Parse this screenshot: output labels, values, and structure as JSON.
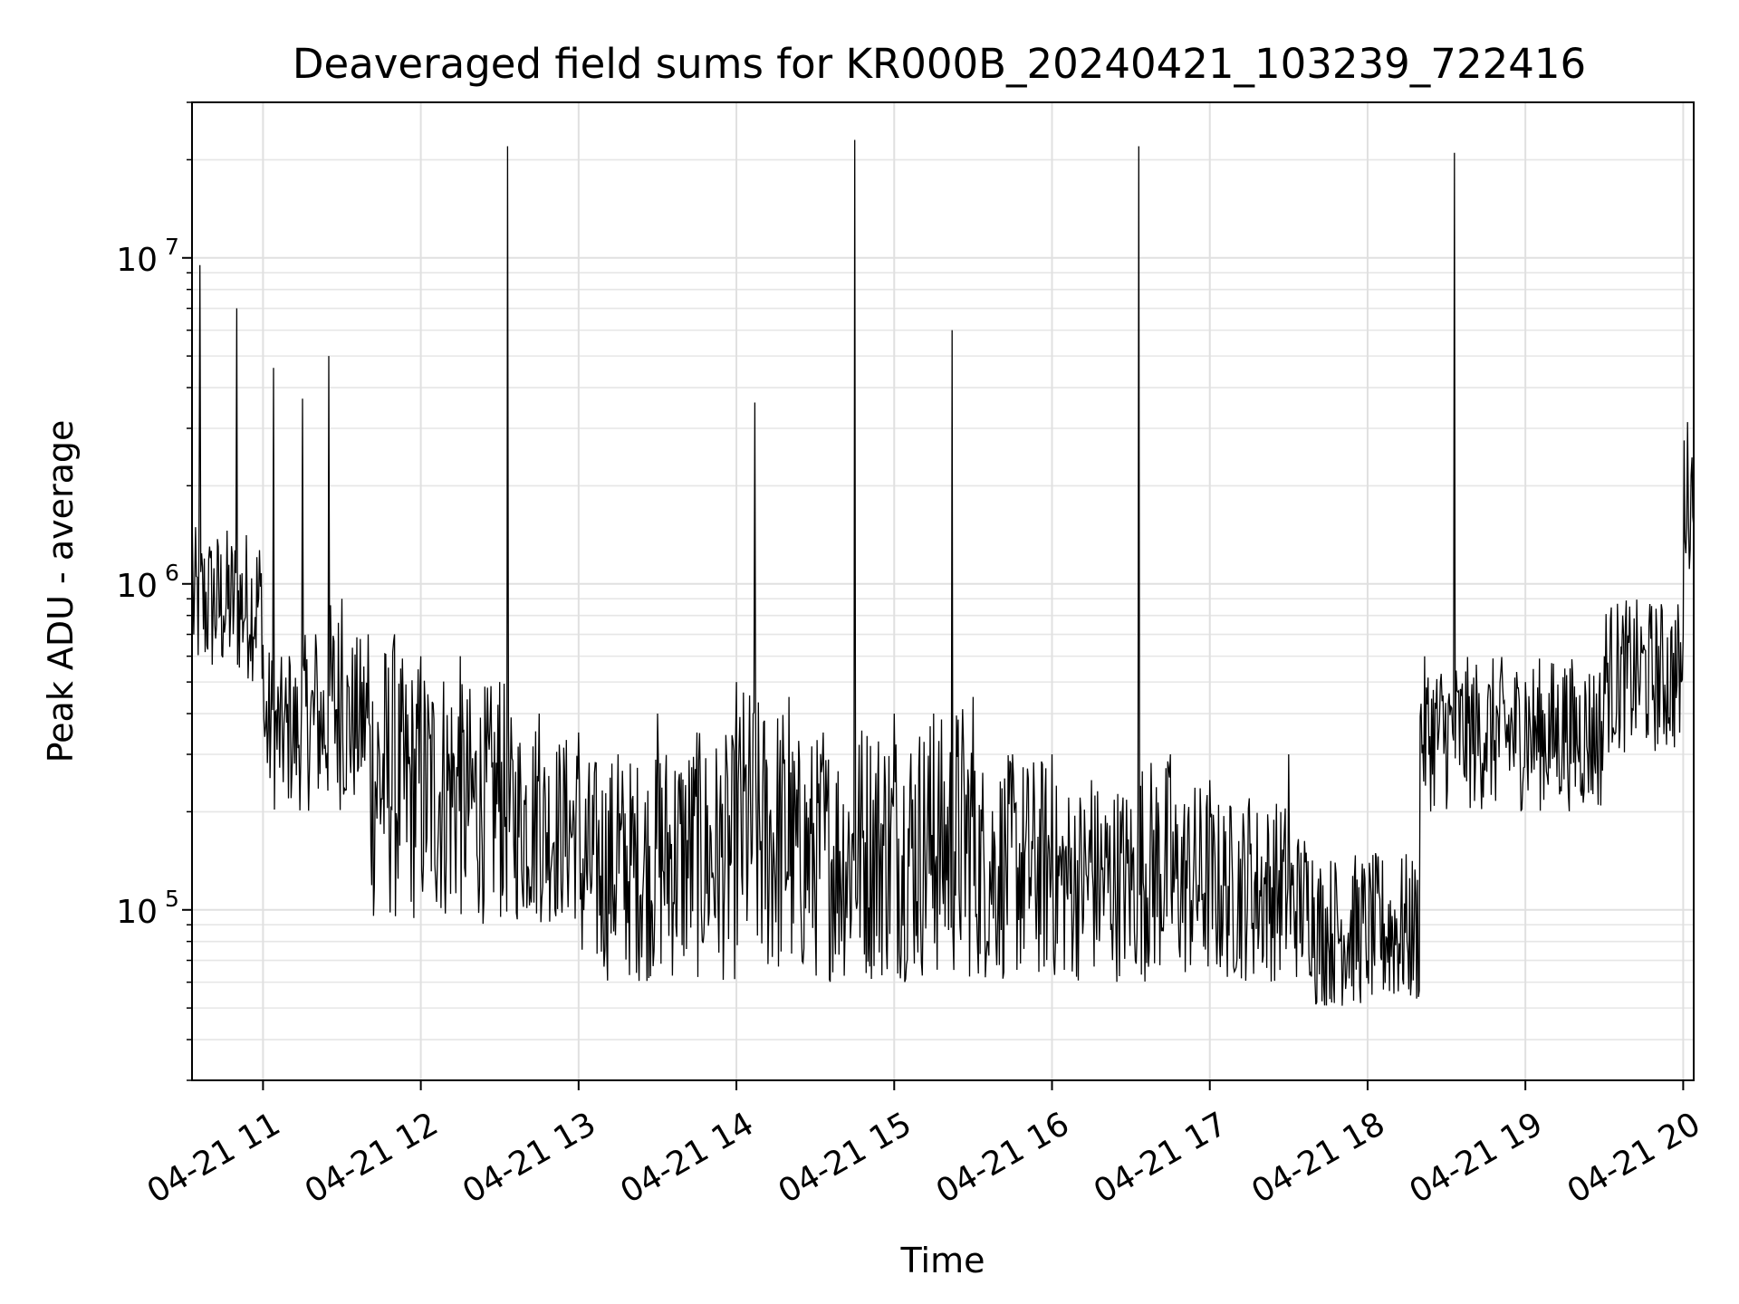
{
  "chart_data": {
    "type": "line",
    "title": "Deaveraged field sums for KR000B_20240421_103239_722416",
    "xlabel": "Time",
    "ylabel": "Peak ADU - average",
    "y_scale": "log",
    "ylim": [
      30000,
      30000000
    ],
    "xlim": [
      "2024-04-21 10:33",
      "2024-04-21 20:04"
    ],
    "grid": true,
    "line_color": "#000000",
    "x_ticks": [
      "04-21 11",
      "04-21 12",
      "04-21 13",
      "04-21 14",
      "04-21 15",
      "04-21 16",
      "04-21 17",
      "04-21 18",
      "04-21 19",
      "04-21 20"
    ],
    "y_ticks": [
      {
        "value": 100000,
        "base": "10",
        "exp": "5"
      },
      {
        "value": 1000000,
        "base": "10",
        "exp": "6"
      },
      {
        "value": 10000000,
        "base": "10",
        "exp": "7"
      }
    ],
    "series": [
      {
        "color": "#000000",
        "x": [
          "2024-04-21 10:33",
          "2024-04-21 10:36",
          "2024-04-21 10:40",
          "2024-04-21 10:45",
          "2024-04-21 10:50",
          "2024-04-21 10:55",
          "2024-04-21 11:00",
          "2024-04-21 11:04",
          "2024-04-21 11:10",
          "2024-04-21 11:15",
          "2024-04-21 11:20",
          "2024-04-21 11:25",
          "2024-04-21 11:30",
          "2024-04-21 11:40",
          "2024-04-21 11:50",
          "2024-04-21 12:00",
          "2024-04-21 12:15",
          "2024-04-21 12:30",
          "2024-04-21 12:33",
          "2024-04-21 12:45",
          "2024-04-21 13:00",
          "2024-04-21 13:15",
          "2024-04-21 13:30",
          "2024-04-21 13:45",
          "2024-04-21 14:00",
          "2024-04-21 14:07",
          "2024-04-21 14:20",
          "2024-04-21 14:33",
          "2024-04-21 14:45",
          "2024-04-21 15:00",
          "2024-04-21 15:15",
          "2024-04-21 15:22",
          "2024-04-21 15:30",
          "2024-04-21 15:45",
          "2024-04-21 16:00",
          "2024-04-21 16:15",
          "2024-04-21 16:33",
          "2024-04-21 16:45",
          "2024-04-21 17:00",
          "2024-04-21 17:15",
          "2024-04-21 17:30",
          "2024-04-21 17:45",
          "2024-04-21 18:00",
          "2024-04-21 18:15",
          "2024-04-21 18:33",
          "2024-04-21 18:45",
          "2024-04-21 19:00",
          "2024-04-21 19:15",
          "2024-04-21 19:30",
          "2024-04-21 19:45",
          "2024-04-21 20:00",
          "2024-04-21 20:04"
        ],
        "y": [
          1800000,
          9500000,
          1200000,
          800000,
          7000000,
          700000,
          650000,
          4600000,
          600000,
          3700000,
          700000,
          5000000,
          900000,
          700000,
          700000,
          600000,
          600000,
          500000,
          22000000,
          400000,
          350000,
          300000,
          400000,
          350000,
          500000,
          3600000,
          450000,
          350000,
          23000000,
          400000,
          400000,
          6000000,
          450000,
          300000,
          300000,
          250000,
          22000000,
          300000,
          250000,
          220000,
          300000,
          80000,
          70000,
          80000,
          21000000,
          350000,
          500000,
          550000,
          600000,
          650000,
          700000,
          1500000
        ]
      }
    ]
  }
}
